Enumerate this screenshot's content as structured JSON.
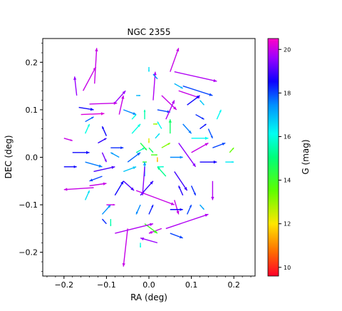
{
  "chart_data": {
    "type": "scatter",
    "title": "NGC 2355",
    "xlabel": "RA (deg)",
    "ylabel": "DEC (deg)",
    "xlim": [
      -0.25,
      0.25
    ],
    "ylim": [
      -0.25,
      0.25
    ],
    "xticks": [
      -0.2,
      -0.1,
      0.0,
      0.1,
      0.2
    ],
    "xtick_labels": [
      "−0.2",
      "−0.1",
      "0.0",
      "0.1",
      "0.2"
    ],
    "yticks": [
      0.2,
      0.1,
      0.0,
      -0.1,
      -0.2
    ],
    "ytick_labels": [
      "0.2",
      "0.1",
      "0.0",
      "−0.1",
      "−0.2"
    ],
    "colorbar": {
      "label": "G (mag)",
      "range": [
        9.6,
        20.5
      ],
      "ticks": [
        20,
        18,
        16,
        14,
        12,
        10
      ],
      "tick_labels": [
        "20",
        "18",
        "16",
        "14",
        "12",
        "10"
      ],
      "colormap": "gist_rainbow"
    },
    "vectors": [
      {
        "x": -0.128,
        "y": 0.155,
        "dx": 0.005,
        "dy": 0.075,
        "g": 20.0
      },
      {
        "x": -0.155,
        "y": 0.14,
        "dx": 0.03,
        "dy": 0.05,
        "g": 20.0
      },
      {
        "x": -0.17,
        "y": 0.13,
        "dx": -0.005,
        "dy": 0.04,
        "g": 19.6
      },
      {
        "x": -0.14,
        "y": 0.112,
        "dx": 0.065,
        "dy": 0.002,
        "g": 20.0
      },
      {
        "x": -0.165,
        "y": 0.105,
        "dx": 0.035,
        "dy": -0.005,
        "g": 18.5
      },
      {
        "x": -0.16,
        "y": 0.09,
        "dx": 0.055,
        "dy": 0.002,
        "g": 20.2
      },
      {
        "x": -0.15,
        "y": 0.075,
        "dx": 0.02,
        "dy": 0.01,
        "g": 17.8
      },
      {
        "x": -0.08,
        "y": 0.115,
        "dx": 0.025,
        "dy": 0.025,
        "g": 19.6
      },
      {
        "x": -0.07,
        "y": 0.09,
        "dx": 0.01,
        "dy": 0.04,
        "g": 20.0
      },
      {
        "x": -0.06,
        "y": 0.1,
        "dx": 0.03,
        "dy": -0.01,
        "g": 17.5
      },
      {
        "x": -0.04,
        "y": 0.05,
        "dx": 0.02,
        "dy": 0.02,
        "g": 16.0
      },
      {
        "x": -0.1,
        "y": 0.045,
        "dx": -0.01,
        "dy": 0.02,
        "g": 18.5
      },
      {
        "x": -0.12,
        "y": 0.03,
        "dx": 0.02,
        "dy": 0.01,
        "g": 18.8
      },
      {
        "x": -0.2,
        "y": 0.04,
        "dx": 0.02,
        "dy": -0.005,
        "g": 20.0
      },
      {
        "x": -0.18,
        "y": 0.01,
        "dx": 0.04,
        "dy": 0.0,
        "g": 18.5
      },
      {
        "x": -0.15,
        "y": -0.01,
        "dx": 0.04,
        "dy": -0.01,
        "g": 17.6
      },
      {
        "x": -0.13,
        "y": -0.03,
        "dx": 0.05,
        "dy": 0.01,
        "g": 19.0
      },
      {
        "x": -0.11,
        "y": -0.04,
        "dx": -0.03,
        "dy": -0.01,
        "g": 18.0
      },
      {
        "x": -0.14,
        "y": -0.06,
        "dx": 0.04,
        "dy": 0.005,
        "g": 20.0
      },
      {
        "x": -0.13,
        "y": -0.064,
        "dx": -0.07,
        "dy": -0.004,
        "g": 20.0
      },
      {
        "x": -0.06,
        "y": -0.05,
        "dx": 0.025,
        "dy": -0.02,
        "g": 19.0
      },
      {
        "x": -0.05,
        "y": -0.01,
        "dx": 0.03,
        "dy": 0.02,
        "g": 17.8
      },
      {
        "x": -0.03,
        "y": 0.01,
        "dx": 0.02,
        "dy": 0.01,
        "g": 15.5
      },
      {
        "x": -0.02,
        "y": 0.03,
        "dx": 0.015,
        "dy": -0.015,
        "g": 14.5
      },
      {
        "x": 0.0,
        "y": 0.02,
        "dx": 0.01,
        "dy": -0.01,
        "g": 14.8
      },
      {
        "x": 0.005,
        "y": 0.005,
        "dx": 0.015,
        "dy": 0.0,
        "g": 13.8
      },
      {
        "x": -0.005,
        "y": -0.01,
        "dx": -0.01,
        "dy": 0.0,
        "g": 14.2
      },
      {
        "x": 0.015,
        "y": 0.04,
        "dx": 0.01,
        "dy": 0.01,
        "g": 16.5
      },
      {
        "x": 0.02,
        "y": -0.02,
        "dx": 0.015,
        "dy": 0.0,
        "g": 15.8
      },
      {
        "x": -0.01,
        "y": -0.04,
        "dx": 0.0,
        "dy": 0.03,
        "g": 17.2
      },
      {
        "x": 0.03,
        "y": 0.06,
        "dx": -0.01,
        "dy": 0.015,
        "g": 16.2
      },
      {
        "x": 0.01,
        "y": 0.12,
        "dx": 0.005,
        "dy": 0.06,
        "g": 19.8
      },
      {
        "x": 0.0,
        "y": 0.19,
        "dx": 0.0,
        "dy": -0.01,
        "g": 16.5
      },
      {
        "x": 0.02,
        "y": 0.165,
        "dx": -0.01,
        "dy": 0.01,
        "g": 17.5
      },
      {
        "x": 0.03,
        "y": 0.13,
        "dx": 0.035,
        "dy": -0.03,
        "g": 20.0
      },
      {
        "x": 0.02,
        "y": 0.1,
        "dx": 0.03,
        "dy": -0.005,
        "g": 18.0
      },
      {
        "x": 0.04,
        "y": 0.08,
        "dx": 0.02,
        "dy": 0.04,
        "g": 19.8
      },
      {
        "x": 0.05,
        "y": 0.18,
        "dx": 0.02,
        "dy": 0.05,
        "g": 20.0
      },
      {
        "x": 0.06,
        "y": 0.18,
        "dx": 0.1,
        "dy": -0.02,
        "g": 19.8
      },
      {
        "x": 0.08,
        "y": 0.15,
        "dx": 0.07,
        "dy": -0.02,
        "g": 18.0
      },
      {
        "x": 0.07,
        "y": 0.14,
        "dx": 0.05,
        "dy": -0.015,
        "g": 20.0
      },
      {
        "x": 0.06,
        "y": 0.155,
        "dx": 0.02,
        "dy": -0.01,
        "g": 17.0
      },
      {
        "x": 0.09,
        "y": 0.11,
        "dx": 0.03,
        "dy": 0.02,
        "g": 18.5
      },
      {
        "x": 0.11,
        "y": 0.09,
        "dx": 0.02,
        "dy": -0.01,
        "g": 18.2
      },
      {
        "x": 0.08,
        "y": 0.07,
        "dx": 0.02,
        "dy": -0.02,
        "g": 17.6
      },
      {
        "x": 0.12,
        "y": 0.06,
        "dx": 0.015,
        "dy": 0.01,
        "g": 18.4
      },
      {
        "x": 0.14,
        "y": 0.06,
        "dx": 0.01,
        "dy": -0.02,
        "g": 17.9
      },
      {
        "x": 0.1,
        "y": 0.04,
        "dx": 0.04,
        "dy": 0.0,
        "g": 16.2
      },
      {
        "x": 0.07,
        "y": 0.03,
        "dx": 0.04,
        "dy": -0.05,
        "g": 19.5
      },
      {
        "x": 0.1,
        "y": 0.01,
        "dx": 0.04,
        "dy": 0.02,
        "g": 20.0
      },
      {
        "x": 0.12,
        "y": -0.01,
        "dx": 0.04,
        "dy": 0.0,
        "g": 18.6
      },
      {
        "x": 0.15,
        "y": 0.02,
        "dx": 0.03,
        "dy": 0.01,
        "g": 18.0
      },
      {
        "x": 0.18,
        "y": -0.01,
        "dx": 0.02,
        "dy": 0.0,
        "g": 16.4
      },
      {
        "x": 0.19,
        "y": 0.01,
        "dx": 0.01,
        "dy": 0.01,
        "g": 13.5
      },
      {
        "x": 0.06,
        "y": -0.03,
        "dx": 0.03,
        "dy": -0.04,
        "g": 18.9
      },
      {
        "x": 0.05,
        "y": 0.0,
        "dx": 0.03,
        "dy": 0.0,
        "g": 17.5
      },
      {
        "x": 0.15,
        "y": -0.05,
        "dx": 0.0,
        "dy": -0.04,
        "g": 19.8
      },
      {
        "x": 0.1,
        "y": -0.06,
        "dx": 0.01,
        "dy": -0.02,
        "g": 18.2
      },
      {
        "x": 0.08,
        "y": -0.08,
        "dx": -0.01,
        "dy": 0.02,
        "g": 18.7
      },
      {
        "x": 0.06,
        "y": -0.09,
        "dx": 0.01,
        "dy": -0.03,
        "g": 20.0
      },
      {
        "x": 0.05,
        "y": -0.11,
        "dx": 0.03,
        "dy": 0.0,
        "g": 18.5
      },
      {
        "x": 0.04,
        "y": -0.15,
        "dx": 0.1,
        "dy": 0.03,
        "g": 19.8
      },
      {
        "x": 0.03,
        "y": -0.15,
        "dx": -0.03,
        "dy": -0.01,
        "g": 20.0
      },
      {
        "x": 0.05,
        "y": -0.16,
        "dx": 0.03,
        "dy": -0.01,
        "g": 18.0
      },
      {
        "x": 0.02,
        "y": -0.18,
        "dx": -0.04,
        "dy": 0.01,
        "g": 19.6
      },
      {
        "x": -0.01,
        "y": -0.14,
        "dx": 0.03,
        "dy": -0.02,
        "g": 14.0
      },
      {
        "x": 0.0,
        "y": -0.12,
        "dx": 0.01,
        "dy": 0.02,
        "g": 18.3
      },
      {
        "x": -0.02,
        "y": -0.1,
        "dx": -0.01,
        "dy": -0.02,
        "g": 17.5
      },
      {
        "x": -0.05,
        "y": -0.15,
        "dx": -0.01,
        "dy": -0.08,
        "g": 20.0
      },
      {
        "x": -0.08,
        "y": -0.16,
        "dx": 0.09,
        "dy": 0.02,
        "g": 19.8
      },
      {
        "x": -0.1,
        "y": -0.14,
        "dx": -0.01,
        "dy": 0.01,
        "g": 18.2
      },
      {
        "x": -0.11,
        "y": -0.12,
        "dx": 0.02,
        "dy": 0.02,
        "g": 17.4
      },
      {
        "x": -0.09,
        "y": -0.13,
        "dx": 0.0,
        "dy": -0.015,
        "g": 15.5
      },
      {
        "x": -0.03,
        "y": -0.07,
        "dx": 0.09,
        "dy": -0.03,
        "g": 20.0
      },
      {
        "x": -0.02,
        "y": -0.08,
        "dx": 0.03,
        "dy": 0.03,
        "g": 18.8
      },
      {
        "x": -0.01,
        "y": -0.02,
        "dx": -0.005,
        "dy": -0.06,
        "g": 19.5
      },
      {
        "x": -0.08,
        "y": -0.08,
        "dx": 0.02,
        "dy": 0.03,
        "g": 18.5
      },
      {
        "x": -0.1,
        "y": -0.1,
        "dx": 0.02,
        "dy": 0.0,
        "g": 20.0
      },
      {
        "x": -0.15,
        "y": -0.09,
        "dx": 0.01,
        "dy": 0.02,
        "g": 16.5
      },
      {
        "x": -0.07,
        "y": 0.0,
        "dx": -0.02,
        "dy": 0.01,
        "g": 17.3
      },
      {
        "x": -0.09,
        "y": 0.02,
        "dx": 0.03,
        "dy": 0.0,
        "g": 18.2
      },
      {
        "x": -0.11,
        "y": 0.01,
        "dx": 0.01,
        "dy": -0.02,
        "g": 19.3
      },
      {
        "x": -0.06,
        "y": -0.03,
        "dx": 0.03,
        "dy": 0.01,
        "g": 16.8
      },
      {
        "x": 0.04,
        "y": -0.04,
        "dx": -0.02,
        "dy": 0.02,
        "g": 15.2
      },
      {
        "x": 0.03,
        "y": 0.02,
        "dx": 0.02,
        "dy": 0.01,
        "g": 13.2
      },
      {
        "x": 0.05,
        "y": 0.05,
        "dx": 0.0,
        "dy": 0.03,
        "g": 14.8
      },
      {
        "x": -0.04,
        "y": 0.08,
        "dx": 0.01,
        "dy": 0.01,
        "g": 16.0
      },
      {
        "x": -0.03,
        "y": 0.13,
        "dx": 0.01,
        "dy": 0.0,
        "g": 17.0
      },
      {
        "x": -0.01,
        "y": 0.08,
        "dx": 0.0,
        "dy": 0.02,
        "g": 15.5
      },
      {
        "x": 0.01,
        "y": 0.07,
        "dx": 0.01,
        "dy": 0.0,
        "g": 12.9
      },
      {
        "x": -0.2,
        "y": -0.02,
        "dx": 0.03,
        "dy": 0.0,
        "g": 18.5
      },
      {
        "x": 0.16,
        "y": 0.08,
        "dx": 0.01,
        "dy": 0.02,
        "g": 16.2
      },
      {
        "x": 0.13,
        "y": 0.11,
        "dx": -0.01,
        "dy": 0.01,
        "g": 16.8
      },
      {
        "x": 0.09,
        "y": -0.12,
        "dx": 0.01,
        "dy": 0.02,
        "g": 18.0
      },
      {
        "x": 0.12,
        "y": -0.1,
        "dx": 0.01,
        "dy": -0.01,
        "g": 17.2
      },
      {
        "x": -0.15,
        "y": 0.05,
        "dx": 0.01,
        "dy": 0.02,
        "g": 16.0
      },
      {
        "x": -0.02,
        "y": -0.18,
        "dx": 0.0,
        "dy": -0.01,
        "g": 16.0
      },
      {
        "x": 0.0,
        "y": 0.04,
        "dx": 0.0,
        "dy": -0.01,
        "g": 12.3
      },
      {
        "x": 0.02,
        "y": 0.0,
        "dx": 0.0,
        "dy": -0.01,
        "g": 11.5
      }
    ]
  }
}
